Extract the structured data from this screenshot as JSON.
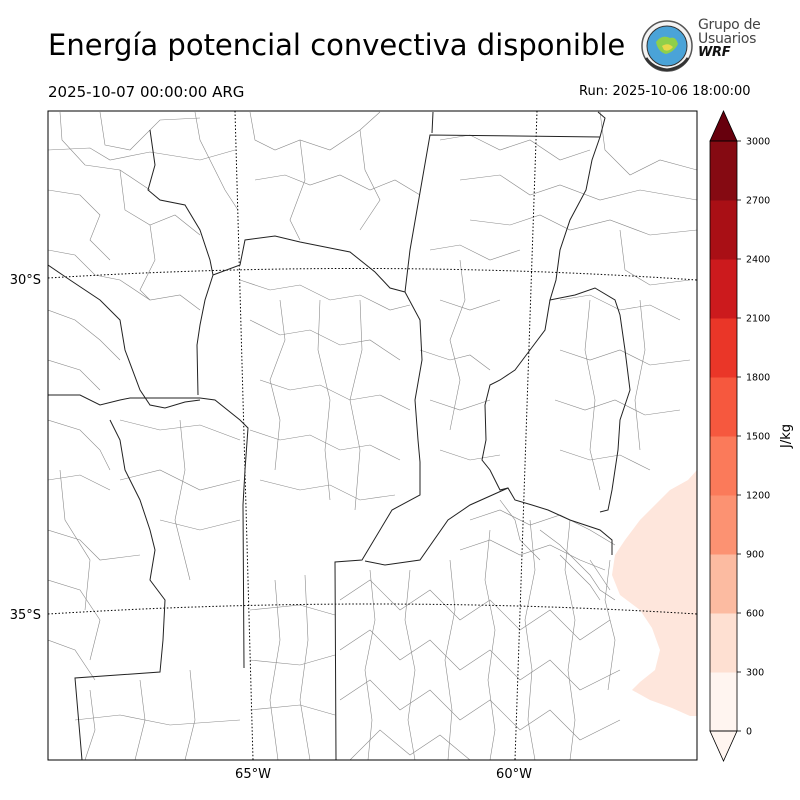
{
  "title": "Energía potencial convectiva disponible",
  "valid_time": "2025-10-07 00:00:00 ARG",
  "run_time": "Run: 2025-10-06 18:00:00",
  "logo": {
    "line1": "Grupo de",
    "line2": "Usuarios",
    "line3": "WRF",
    "icon": "globe-seal-icon"
  },
  "map": {
    "lat_labels": [
      "30°S",
      "35°S"
    ],
    "lon_labels": [
      "65°W",
      "60°W"
    ],
    "shaded_region": "cape-low-values-coastal",
    "colors": {
      "province_border": "#222222",
      "department_border": "#8a8a8a",
      "graticule": "#000000",
      "cape_shade": "#fee6dc"
    }
  },
  "colorbar": {
    "unit": "J/kg",
    "ticks": [
      "0",
      "300",
      "600",
      "900",
      "1200",
      "1500",
      "1800",
      "2100",
      "2400",
      "2700",
      "3000"
    ],
    "colors": [
      "#fff5f0",
      "#fee0d2",
      "#fcbba1",
      "#fc9272",
      "#fb7a5a",
      "#f6583e",
      "#ea3628",
      "#cc1a1d",
      "#a90f15",
      "#850a12",
      "#67000d"
    ],
    "extend": "both"
  }
}
